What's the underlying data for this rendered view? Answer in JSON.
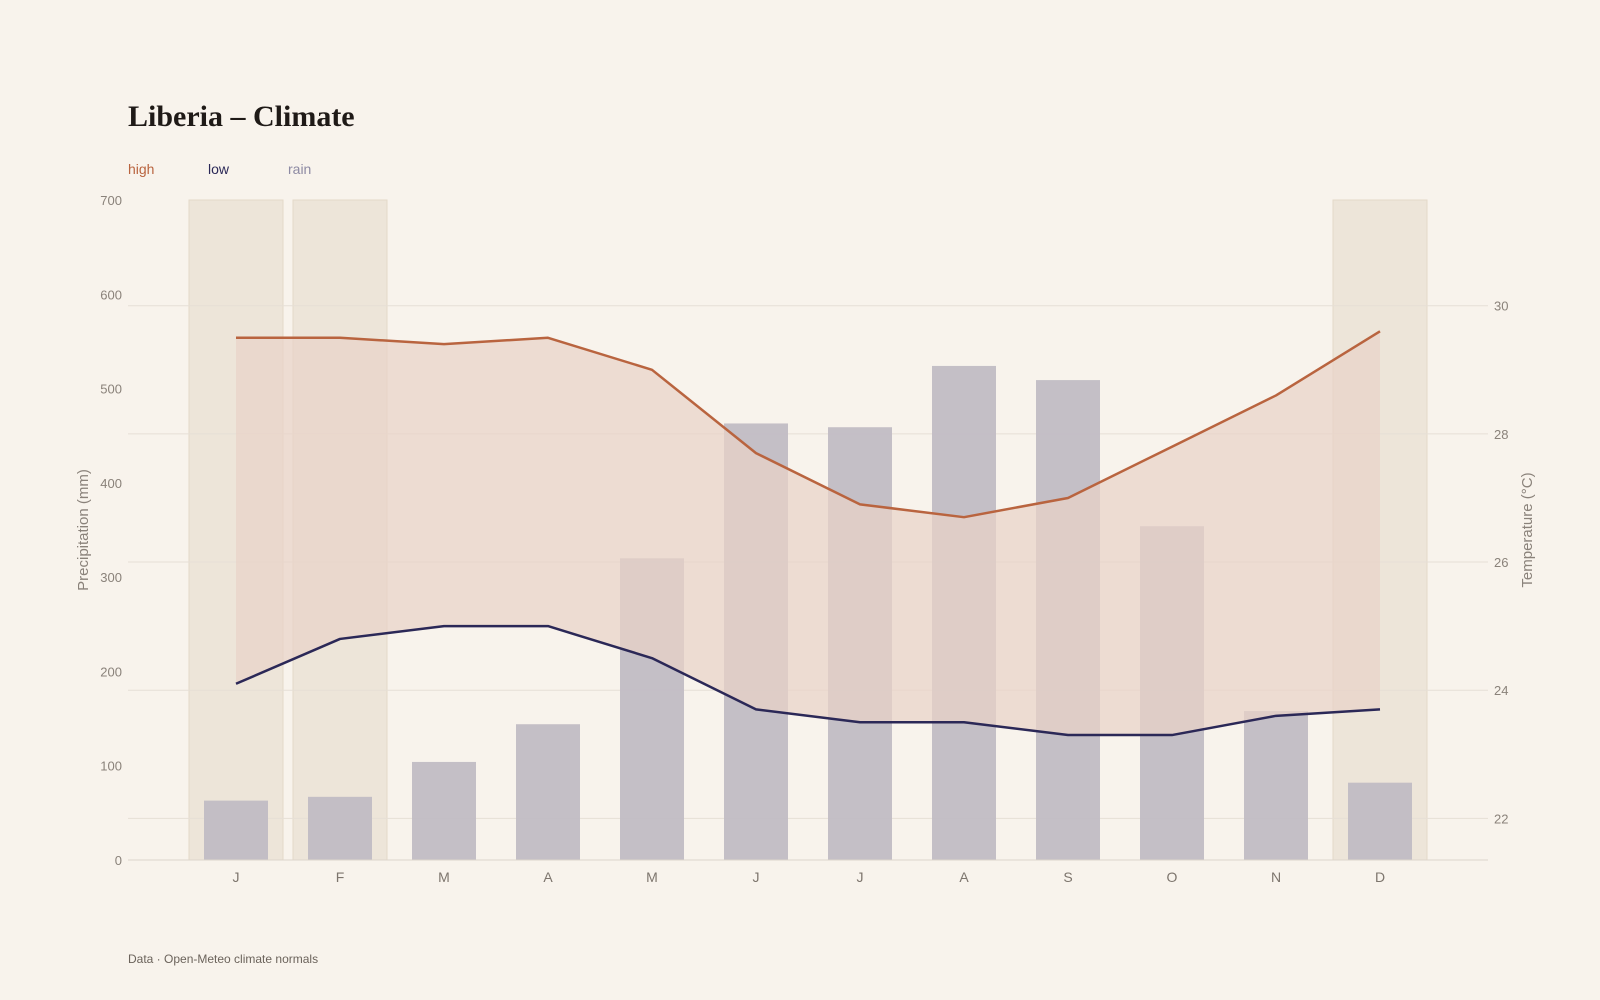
{
  "title": "Liberia – Climate",
  "legend": [
    {
      "label": "high",
      "color": "#b9643f"
    },
    {
      "label": "low",
      "color": "#2b2857"
    },
    {
      "label": "rain",
      "color": "#8d8aa3"
    }
  ],
  "source": "Data · Open-Meteo climate normals",
  "colors": {
    "high": "#b9643f",
    "low": "#2b2857",
    "rain_bar": "#c1bcc4",
    "band_fill": "#e9d3c8",
    "dry_season": "#ede5d9",
    "grid": "#e6dfd6"
  },
  "chart_data": {
    "type": "bar+line",
    "categories": [
      "J",
      "F",
      "M",
      "A",
      "M",
      "J",
      "J",
      "A",
      "S",
      "O",
      "N",
      "D"
    ],
    "series": [
      {
        "name": "high",
        "axis": "right",
        "type": "line",
        "values": [
          29.5,
          29.5,
          29.4,
          29.5,
          29.0,
          27.7,
          26.9,
          26.7,
          27.0,
          27.8,
          28.6,
          29.6
        ]
      },
      {
        "name": "low",
        "axis": "right",
        "type": "line",
        "values": [
          24.1,
          24.8,
          25.0,
          25.0,
          24.5,
          23.7,
          23.5,
          23.5,
          23.3,
          23.3,
          23.6,
          23.7
        ]
      },
      {
        "name": "rain",
        "axis": "left",
        "type": "bar",
        "values": [
          63,
          67,
          104,
          144,
          320,
          463,
          459,
          524,
          509,
          354,
          158,
          82
        ]
      }
    ],
    "highlighted_months": [
      0,
      1,
      11
    ],
    "ylabel": "Precipitation (mm)",
    "y2label": "Temperature (°C)",
    "ylim": [
      0,
      700
    ],
    "y_ticks": [
      0,
      100,
      200,
      300,
      400,
      500,
      600,
      700
    ],
    "y2lim": [
      21.35,
      31.65
    ],
    "y2_ticks": [
      22,
      24,
      26,
      28,
      30
    ],
    "grid": true,
    "legend_position": "top-left"
  }
}
